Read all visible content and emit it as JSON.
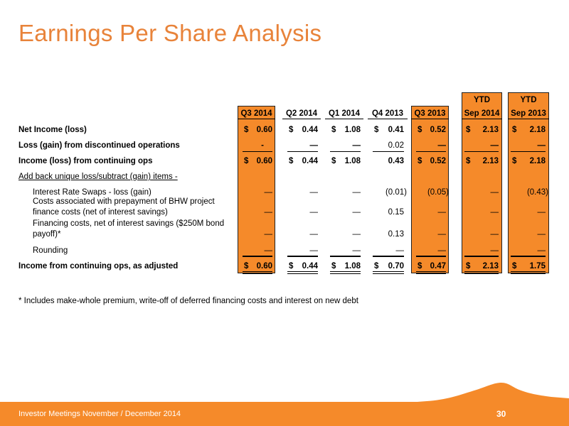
{
  "title": "Earnings Per Share Analysis",
  "header": {
    "ytd_a": "YTD",
    "ytd_b": "YTD",
    "columns": [
      "Q3 2014",
      "Q2 2014",
      "Q1 2014",
      "Q4 2013",
      "Q3 2013",
      "Sep 2014",
      "Sep 2013"
    ]
  },
  "rows": {
    "net_income": {
      "label": "Net Income (loss)",
      "values": [
        "0.60",
        "0.44",
        "1.08",
        "0.41",
        "0.52",
        "2.13",
        "2.18"
      ]
    },
    "discontinued": {
      "label": "Loss (gain) from discontinued operations",
      "values": [
        "-",
        "—",
        "—",
        "0.02",
        "—",
        "—",
        "—"
      ]
    },
    "continuing": {
      "label": "Income (loss) from continuing ops",
      "values": [
        "0.60",
        "0.44",
        "1.08",
        "0.43",
        "0.52",
        "2.13",
        "2.18"
      ]
    },
    "addback": {
      "label": "Add back unique loss/subtract (gain) items -"
    },
    "swaps": {
      "label": "Interest Rate Swaps - loss (gain)",
      "values": [
        "—",
        "—",
        "—",
        "(0.01)",
        "(0.05)",
        "—",
        "(0.43)"
      ]
    },
    "bhw": {
      "label_1": "Costs associated with prepayment of BHW project",
      "label_2": "finance costs (net of interest savings)",
      "values": [
        "—",
        "—",
        "—",
        "0.15",
        "—",
        "—",
        "—"
      ]
    },
    "financing": {
      "label_1": "Financing costs, net of interest savings ($250M bond",
      "label_2": "payoff)*",
      "values": [
        "—",
        "—",
        "—",
        "0.13",
        "—",
        "—",
        "—"
      ]
    },
    "rounding": {
      "label": "Rounding",
      "values": [
        "—",
        "—",
        "—",
        "—",
        "—",
        "—",
        "—"
      ]
    },
    "adjusted": {
      "label": "Income from continuing ops, as adjusted",
      "values": [
        "0.60",
        "0.44",
        "1.08",
        "0.70",
        "0.47",
        "2.13",
        "1.75"
      ]
    }
  },
  "currency_symbol": "$",
  "footnote": "* Includes make-whole premium, write-off of deferred financing costs and interest on new debt",
  "footer": {
    "text": "Investor Meetings November / December 2014",
    "page_number": "30"
  },
  "colors": {
    "accent": "#F58A2A",
    "title": "#E8833A"
  }
}
